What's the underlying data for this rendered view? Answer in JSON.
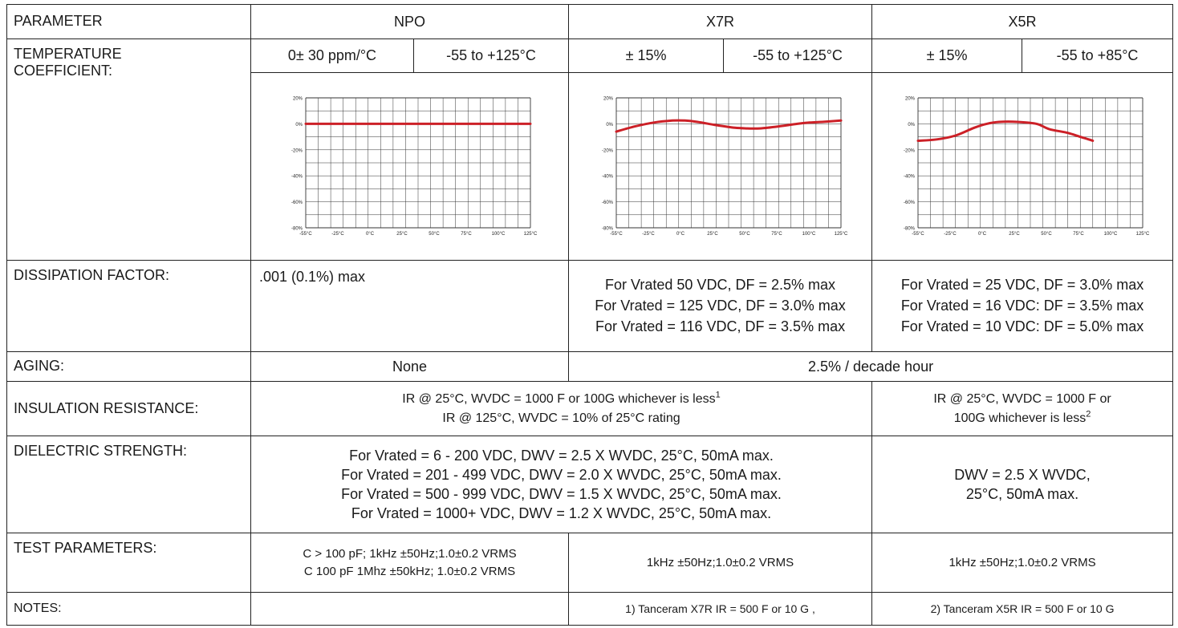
{
  "header": {
    "parameter": "PARAMETER",
    "npo": "NPO",
    "x7r": "X7R",
    "x5r": "X5R"
  },
  "temperature": {
    "label_line1": "TEMPERATURE",
    "label_line2": "COEFFICIENT:",
    "npo_coef": "0± 30 ppm/°C",
    "npo_range": "-55 to +125°C",
    "x7r_coef": "± 15%",
    "x7r_range": "-55 to +125°C",
    "x5r_coef": "± 15%",
    "x5r_range": "-55 to +85°C"
  },
  "chart_axes": {
    "y_ticks": [
      "20%",
      "0%",
      "-20%",
      "-40%",
      "-60%",
      "-80%"
    ],
    "x_ticks": [
      "-55°C",
      "-25°C",
      "0°C",
      "25°C",
      "50°C",
      "75°C",
      "100°C",
      "125°C"
    ]
  },
  "chart_data": [
    {
      "type": "line",
      "xlabel": "",
      "ylabel": "",
      "xlim": [
        -55,
        125
      ],
      "ylim": [
        -80,
        20
      ],
      "grid": true,
      "x": [
        -55,
        -25,
        0,
        25,
        50,
        75,
        100,
        125
      ],
      "series": [
        {
          "values": [
            0,
            0,
            0,
            0,
            0,
            0,
            0,
            0
          ],
          "color": "#cc2027"
        }
      ]
    },
    {
      "type": "line",
      "xlabel": "",
      "ylabel": "",
      "xlim": [
        -55,
        125
      ],
      "ylim": [
        -80,
        20
      ],
      "grid": true,
      "x": [
        -55,
        -40,
        -25,
        -10,
        0,
        10,
        25,
        40,
        50,
        60,
        75,
        90,
        100,
        110,
        125
      ],
      "series": [
        {
          "values": [
            -6,
            -2,
            1,
            2.5,
            2.5,
            1.5,
            -1,
            -3,
            -3.5,
            -3.5,
            -2,
            0,
            1,
            1.5,
            2.5
          ],
          "color": "#cc2027"
        }
      ]
    },
    {
      "type": "line",
      "xlabel": "",
      "ylabel": "",
      "xlim": [
        -55,
        125
      ],
      "ylim": [
        -80,
        20
      ],
      "grid": true,
      "x": [
        -55,
        -40,
        -25,
        -10,
        0,
        10,
        25,
        40,
        50,
        65,
        75,
        85
      ],
      "series": [
        {
          "values": [
            -13,
            -12,
            -9,
            -3,
            0,
            1.5,
            1.5,
            0,
            -4,
            -7,
            -10,
            -13
          ],
          "color": "#cc2027"
        }
      ]
    }
  ],
  "dissipation": {
    "label": "DISSIPATION  FACTOR:",
    "npo": ".001 (0.1%) max",
    "x7r": [
      "For Vrated   50 VDC, DF = 2.5% max",
      "For Vrated = 125 VDC, DF = 3.0% max",
      "For Vrated = 116 VDC, DF = 3.5% max"
    ],
    "x5r": [
      "For Vrated = 25 VDC, DF = 3.0% max",
      "For Vrated = 16 VDC: DF = 3.5% max",
      "For Vrated = 10 VDC: DF = 5.0% max"
    ]
  },
  "aging": {
    "label": "AGING:",
    "npo": "None",
    "x7r_x5r": "2.5% / decade hour"
  },
  "insulation": {
    "label": "INSULATION RESISTANCE:",
    "npo_x7r_line1": "IR @ 25°C, WVDC = 1000 F or 100G  whichever is less",
    "npo_x7r_sup": "1",
    "npo_x7r_line2": "IR @ 125°C, WVDC = 10% of 25°C rating",
    "x5r_line1": "IR @ 25°C, WVDC = 1000 F or",
    "x5r_line2": "100G  whichever is less",
    "x5r_sup": "2"
  },
  "dielectric": {
    "label": "DIELECTRIC STRENGTH:",
    "npo_x7r": [
      "For Vrated = 6 - 200 VDC, DWV = 2.5 X WVDC, 25°C, 50mA max.",
      "For Vrated = 201 - 499 VDC, DWV = 2.0 X WVDC, 25°C, 50mA max.",
      "For Vrated = 500 - 999 VDC, DWV = 1.5 X WVDC, 25°C, 50mA max.",
      "For Vrated = 1000+ VDC, DWV = 1.2 X WVDC, 25°C, 50mA max."
    ],
    "x5r_line1": "DWV = 2.5 X WVDC,",
    "x5r_line2": "25°C, 50mA max."
  },
  "test": {
    "label": "TEST PARAMETERS:",
    "npo_line1": "C > 100 pF; 1kHz ±50Hz;1.0±0.2 VRMS",
    "npo_line2": "C   100 pF 1Mhz ±50kHz; 1.0±0.2 VRMS",
    "x7r": "1kHz ±50Hz;1.0±0.2 VRMS",
    "x5r": "1kHz ±50Hz;1.0±0.2 VRMS"
  },
  "notes": {
    "label": "NOTES:",
    "npo": "",
    "x7r": "1) Tanceram X7R IR = 500  F or 10 G ,",
    "x5r": "2) Tanceram X5R IR = 500  F or 10 G"
  }
}
